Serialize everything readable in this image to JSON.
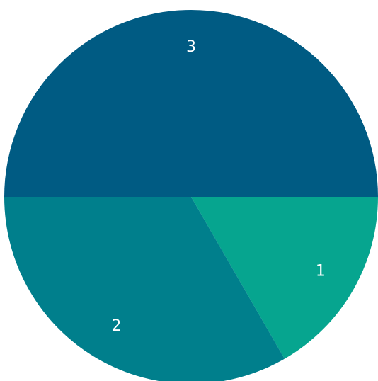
{
  "chart_data": {
    "type": "pie",
    "title": "",
    "legend": "none",
    "slices": [
      {
        "label": "1",
        "value": 1,
        "color": "#06A58F"
      },
      {
        "label": "2",
        "value": 2,
        "color": "#007F8C"
      },
      {
        "label": "3",
        "value": 3,
        "color": "#005B83"
      }
    ],
    "labels_shown": [
      "1",
      "2",
      "3"
    ]
  }
}
